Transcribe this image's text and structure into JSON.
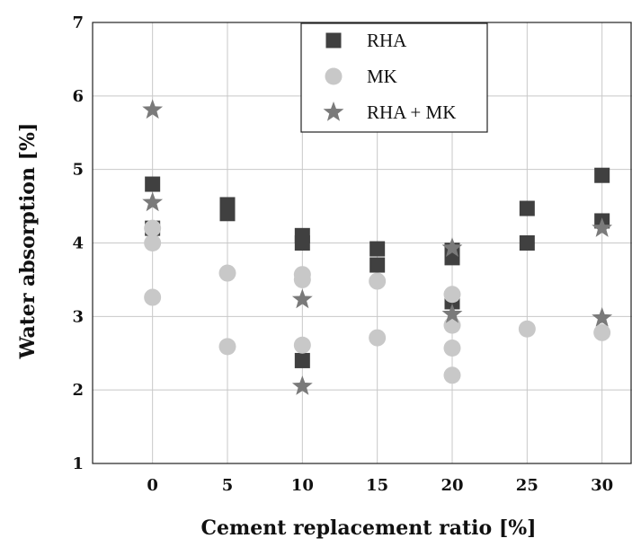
{
  "chart_data": {
    "type": "scatter",
    "xlabel": "Cement replacement ratio [%]",
    "ylabel": "Water absorption [%]",
    "xlim": [
      -4,
      32
    ],
    "ylim": [
      1,
      7
    ],
    "x_ticks": [
      0,
      5,
      10,
      15,
      20,
      25,
      30
    ],
    "y_ticks": [
      1,
      2,
      3,
      4,
      5,
      6,
      7
    ],
    "grid": true,
    "legend_position": "top-center",
    "series": [
      {
        "name": "RHA",
        "marker": "square",
        "color": "#404040",
        "points": [
          {
            "x": 0,
            "y": 4.8
          },
          {
            "x": 0,
            "y": 4.2
          },
          {
            "x": 5,
            "y": 4.52
          },
          {
            "x": 5,
            "y": 4.4
          },
          {
            "x": 10,
            "y": 4.1
          },
          {
            "x": 10,
            "y": 4.0
          },
          {
            "x": 10,
            "y": 2.4
          },
          {
            "x": 15,
            "y": 3.92
          },
          {
            "x": 15,
            "y": 3.7
          },
          {
            "x": 20,
            "y": 3.9
          },
          {
            "x": 20,
            "y": 3.8
          },
          {
            "x": 20,
            "y": 3.2
          },
          {
            "x": 25,
            "y": 4.47
          },
          {
            "x": 25,
            "y": 4.0
          },
          {
            "x": 30,
            "y": 4.92
          },
          {
            "x": 30,
            "y": 4.3
          }
        ]
      },
      {
        "name": "MK",
        "marker": "circle",
        "color": "#c8c8c8",
        "points": [
          {
            "x": 0,
            "y": 4.2
          },
          {
            "x": 0,
            "y": 4.0
          },
          {
            "x": 0,
            "y": 3.26
          },
          {
            "x": 5,
            "y": 3.59
          },
          {
            "x": 5,
            "y": 2.59
          },
          {
            "x": 10,
            "y": 3.57
          },
          {
            "x": 10,
            "y": 3.5
          },
          {
            "x": 10,
            "y": 2.61
          },
          {
            "x": 15,
            "y": 3.48
          },
          {
            "x": 15,
            "y": 2.71
          },
          {
            "x": 20,
            "y": 3.3
          },
          {
            "x": 20,
            "y": 2.88
          },
          {
            "x": 20,
            "y": 2.57
          },
          {
            "x": 20,
            "y": 2.2
          },
          {
            "x": 25,
            "y": 2.83
          },
          {
            "x": 30,
            "y": 2.78
          }
        ]
      },
      {
        "name": "RHA + MK",
        "marker": "star",
        "color": "#7a7a7a",
        "points": [
          {
            "x": 0,
            "y": 5.81
          },
          {
            "x": 0,
            "y": 4.55
          },
          {
            "x": 10,
            "y": 3.23
          },
          {
            "x": 10,
            "y": 2.05
          },
          {
            "x": 20,
            "y": 3.93
          },
          {
            "x": 20,
            "y": 3.03
          },
          {
            "x": 30,
            "y": 4.2
          },
          {
            "x": 30,
            "y": 2.98
          }
        ]
      }
    ]
  }
}
